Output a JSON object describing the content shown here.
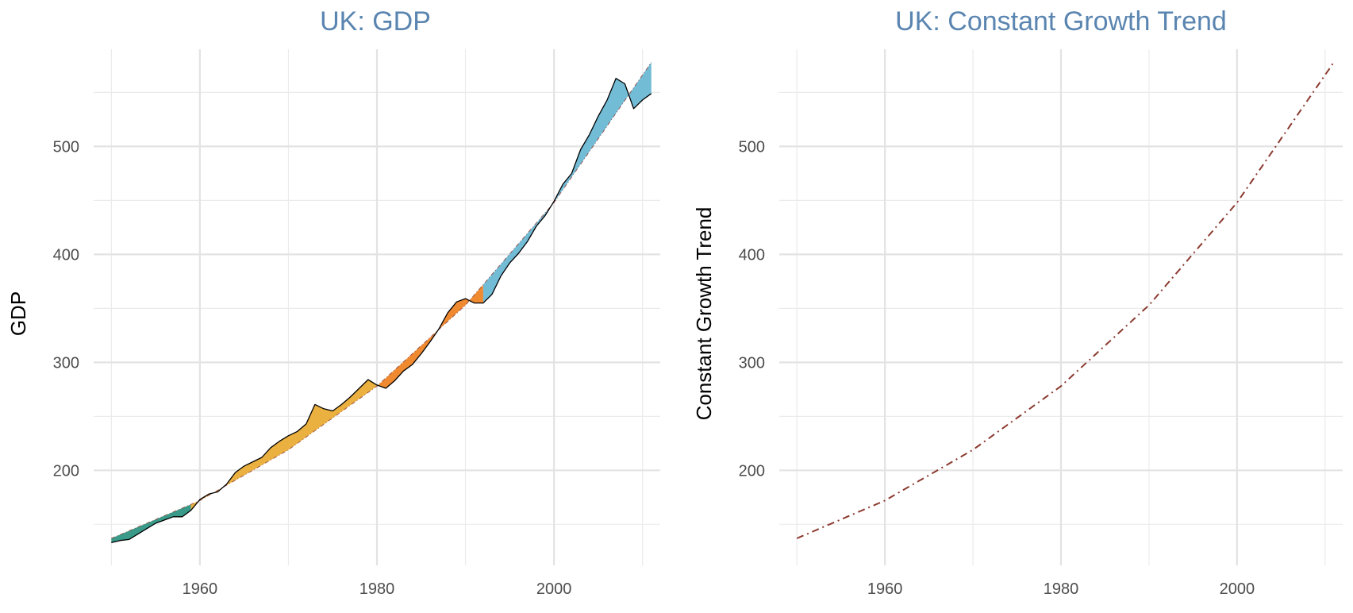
{
  "chart_data": [
    {
      "type": "area",
      "title": "UK: GDP",
      "xlabel": "",
      "ylabel": "GDP",
      "xlim": [
        1948,
        2012
      ],
      "ylim": [
        112,
        590
      ],
      "x_ticks": [
        1960,
        1980,
        2000
      ],
      "x_tick_labels": [
        "1960",
        "1980",
        "2000"
      ],
      "y_ticks": [
        200,
        300,
        400,
        500
      ],
      "y_tick_labels": [
        "200",
        "300",
        "400",
        "500"
      ],
      "grid": true,
      "legend": "none",
      "fill_between": "GDP and constant growth trend",
      "fill_colors": [
        "#3a9a8a",
        "#eab040",
        "#ef8a30",
        "#72bcd6"
      ],
      "fill_segments": [
        {
          "from": 1950,
          "to": 1959,
          "color": "#3a9a8a"
        },
        {
          "from": 1959,
          "to": 1980,
          "color": "#eab040"
        },
        {
          "from": 1980,
          "to": 1992,
          "color": "#ef8a30"
        },
        {
          "from": 1992,
          "to": 2011,
          "color": "#72bcd6"
        }
      ],
      "series": [
        {
          "name": "GDP",
          "color": "#000000",
          "x": [
            1950,
            1951,
            1952,
            1953,
            1954,
            1955,
            1956,
            1957,
            1958,
            1959,
            1960,
            1961,
            1962,
            1963,
            1964,
            1965,
            1966,
            1967,
            1968,
            1969,
            1970,
            1971,
            1972,
            1973,
            1974,
            1975,
            1976,
            1977,
            1978,
            1979,
            1980,
            1981,
            1982,
            1983,
            1984,
            1985,
            1986,
            1987,
            1988,
            1989,
            1990,
            1991,
            1992,
            1993,
            1994,
            1995,
            1996,
            1997,
            1998,
            1999,
            2000,
            2001,
            2002,
            2003,
            2004,
            2005,
            2006,
            2007,
            2008,
            2009,
            2010,
            2011
          ],
          "values": [
            133,
            135,
            136,
            141,
            146,
            151,
            154,
            157,
            157,
            163,
            173,
            178,
            180,
            187,
            198,
            204,
            208,
            212,
            221,
            227,
            232,
            236,
            243,
            261,
            257,
            255,
            261,
            268,
            276,
            284,
            279,
            276,
            283,
            292,
            298,
            308,
            319,
            331,
            346,
            356,
            359,
            355,
            355,
            363,
            380,
            392,
            401,
            412,
            426,
            436,
            449,
            465,
            475,
            497,
            511,
            528,
            543,
            563,
            558,
            535,
            543,
            549
          ]
        },
        {
          "name": "Constant Growth Trend",
          "color": "#8b3a2f",
          "x": [
            1950,
            1960,
            1970,
            1980,
            1990,
            2000,
            2011
          ],
          "values": [
            137,
            172,
            219,
            278,
            353,
            448,
            578
          ]
        }
      ]
    },
    {
      "type": "line",
      "title": "UK: Constant Growth Trend",
      "xlabel": "",
      "ylabel": "Constant Growth Trend",
      "xlim": [
        1948,
        2012
      ],
      "ylim": [
        112,
        590
      ],
      "x_ticks": [
        1960,
        1980,
        2000
      ],
      "x_tick_labels": [
        "1960",
        "1980",
        "2000"
      ],
      "y_ticks": [
        200,
        300,
        400,
        500
      ],
      "y_tick_labels": [
        "200",
        "300",
        "400",
        "500"
      ],
      "grid": true,
      "legend": "none",
      "series": [
        {
          "name": "Constant Growth Trend",
          "color": "#8b3a2f",
          "line_style": "dash-dot",
          "x": [
            1950,
            1960,
            1970,
            1980,
            1990,
            2000,
            2011
          ],
          "values": [
            137,
            172,
            219,
            278,
            353,
            448,
            578
          ]
        }
      ]
    }
  ]
}
